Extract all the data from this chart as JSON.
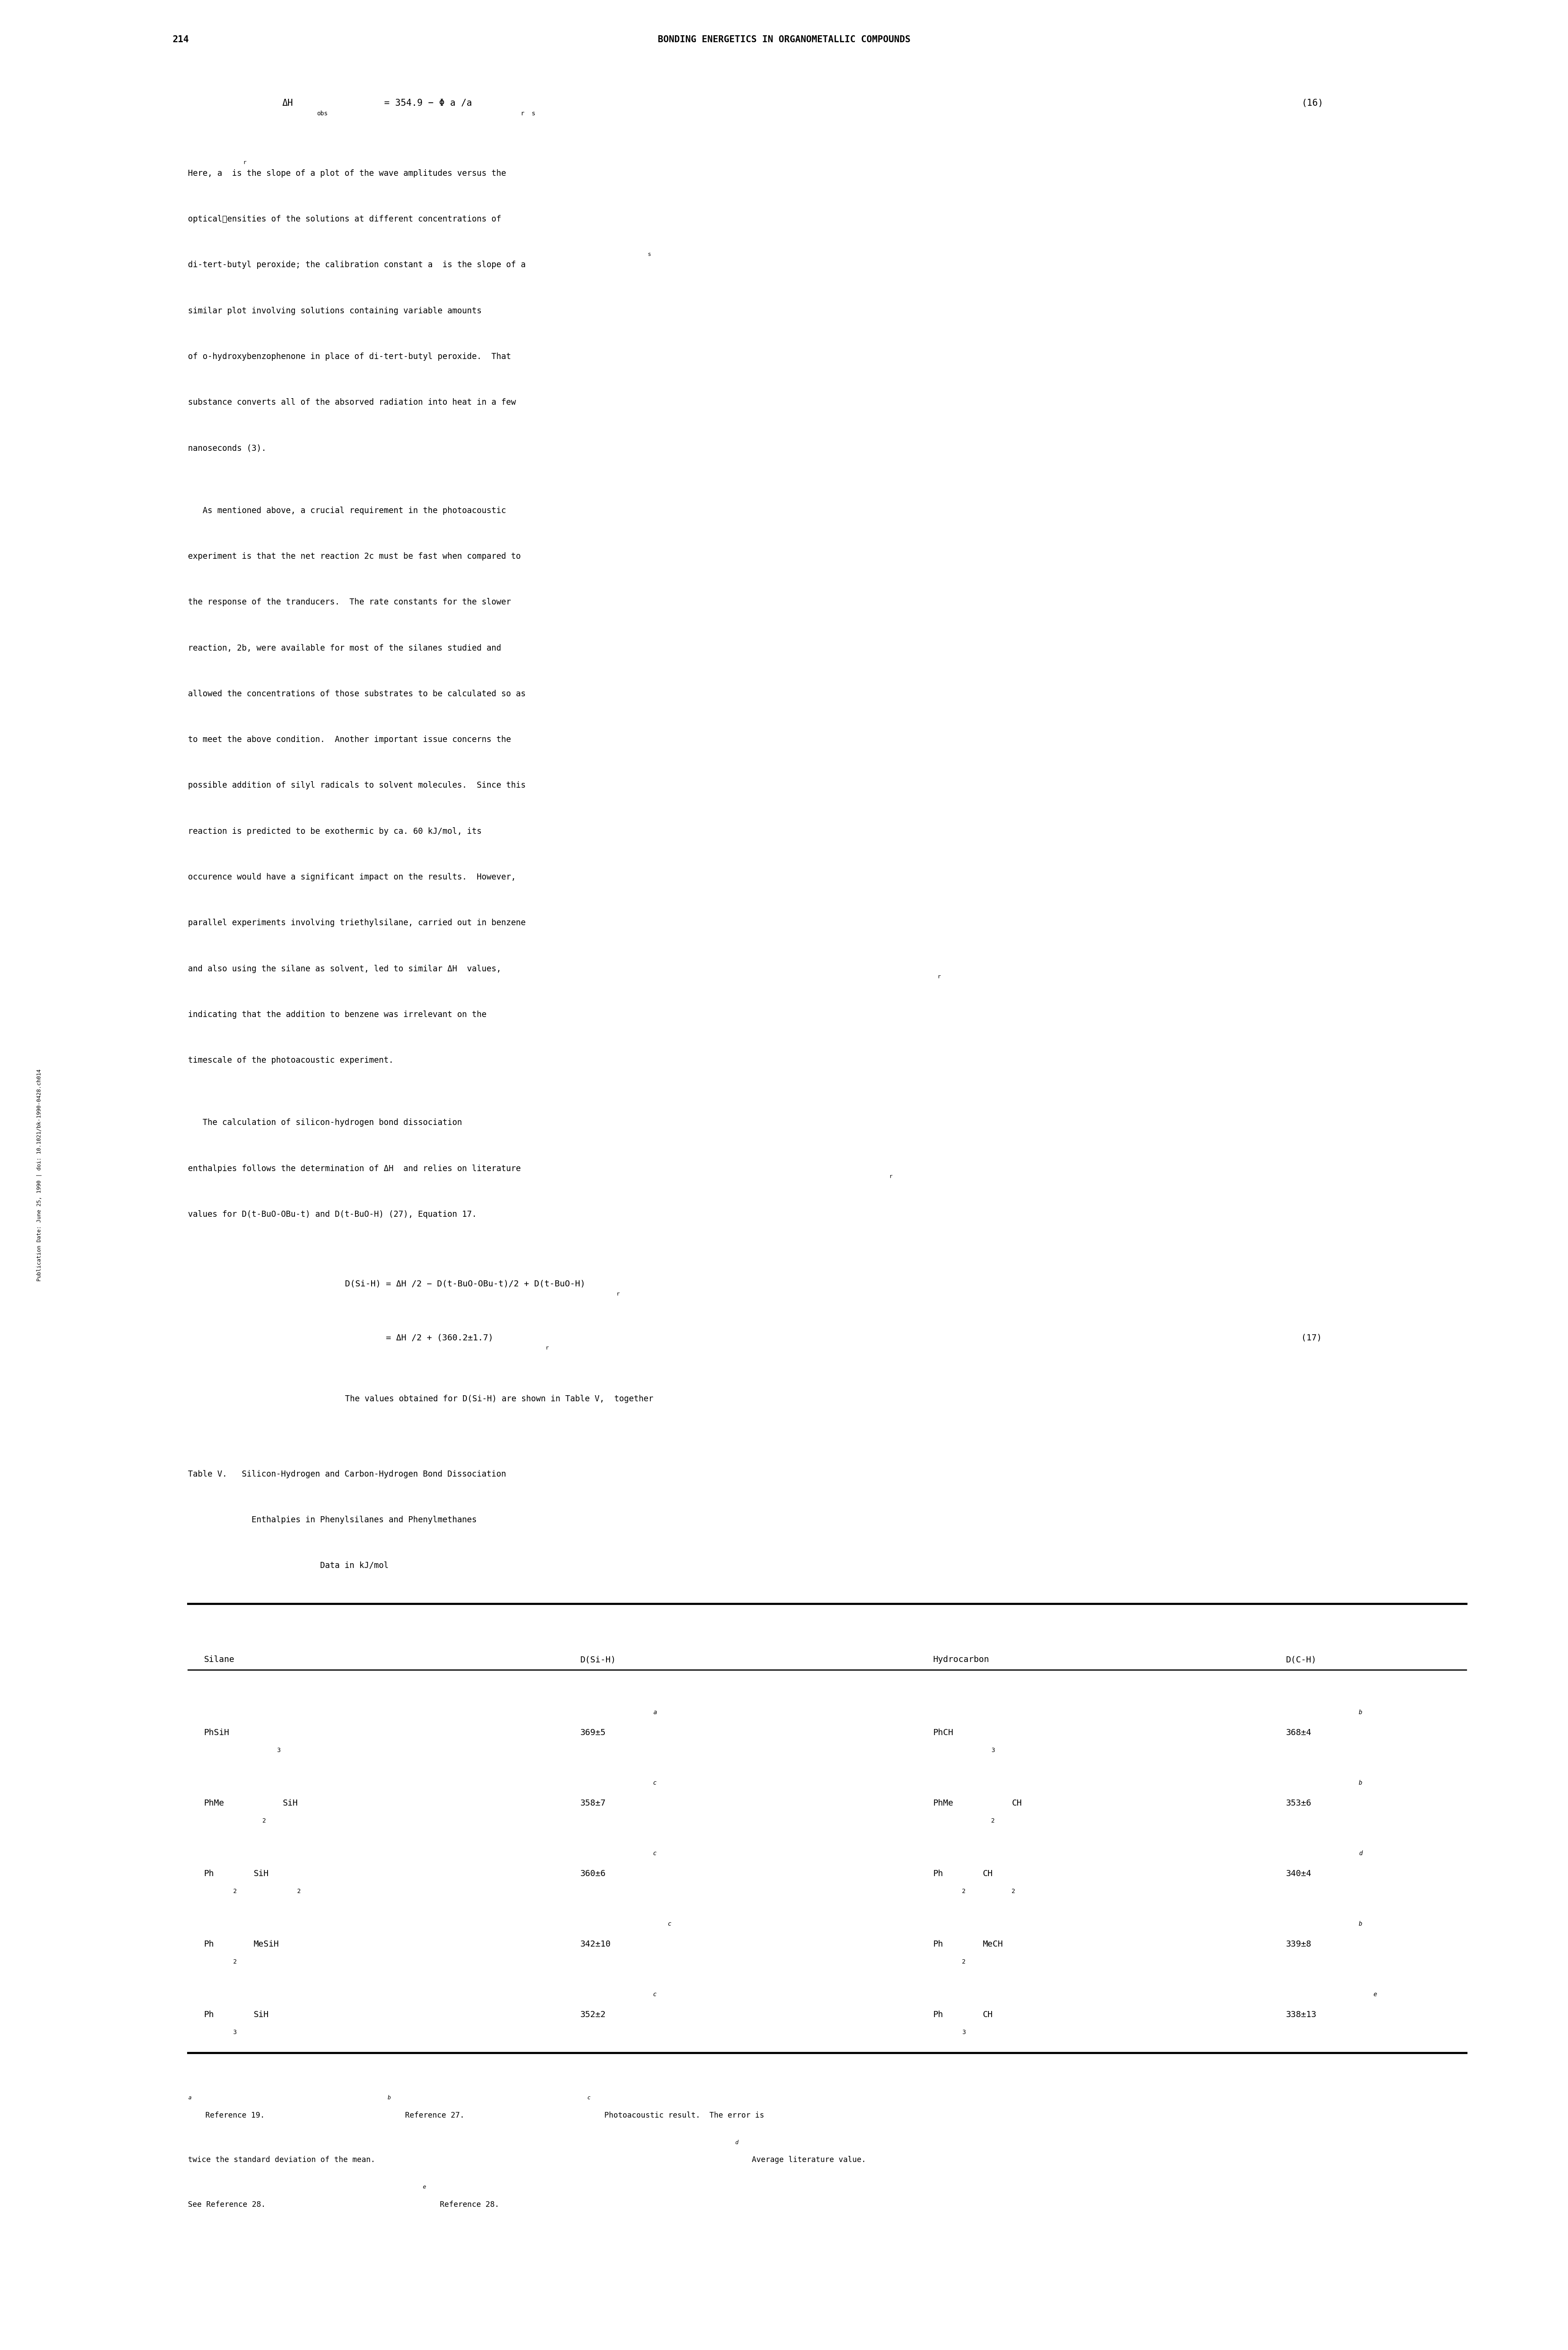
{
  "page_number": "214",
  "page_header": "BONDING ENERGETICS IN ORGANOMETALLIC COMPOUNDS",
  "background_color": "#ffffff",
  "text_color": "#000000",
  "sidebar_text": "Publication Date: June 25, 1990 | doi: 10.1021/bk-1990-0428.ch014",
  "table_headers": [
    "Silane",
    "D(Si-H)",
    "Hydrocarbon",
    "D(C-H)"
  ],
  "paragraph4": "The values obtained for D(Si-H) are shown in Table V,  together"
}
